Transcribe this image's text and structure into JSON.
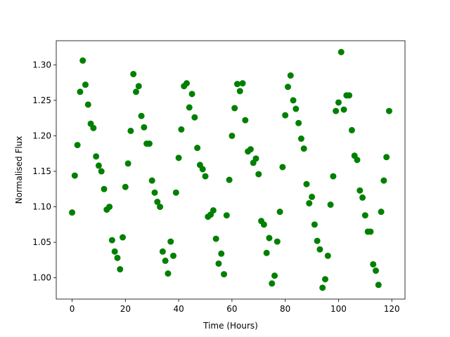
{
  "chart_data": {
    "type": "scatter",
    "xlabel": "Time (Hours)",
    "ylabel": "Normalised Flux",
    "color": "#008000",
    "x": [
      0,
      1,
      2,
      3,
      4,
      5,
      6,
      7,
      8,
      9,
      10,
      11,
      12,
      13,
      14,
      15,
      16,
      17,
      18,
      19,
      20,
      21,
      22,
      23,
      24,
      25,
      26,
      27,
      28,
      29,
      30,
      31,
      32,
      33,
      34,
      35,
      36,
      37,
      38,
      39,
      40,
      41,
      42,
      43,
      44,
      45,
      46,
      47,
      48,
      49,
      50,
      51,
      52,
      53,
      54,
      55,
      56,
      57,
      58,
      59,
      60,
      61,
      62,
      63,
      64,
      65,
      66,
      67,
      68,
      69,
      70,
      71,
      72,
      73,
      74,
      75,
      76,
      77,
      78,
      79,
      80,
      81,
      82,
      83,
      84,
      85,
      86,
      87,
      88,
      89,
      90,
      91,
      92,
      93,
      94,
      95,
      96,
      97,
      98,
      99,
      100,
      101,
      102,
      103,
      104,
      105,
      106,
      107,
      108,
      109,
      110,
      111,
      112,
      113,
      114,
      115,
      116,
      117,
      118,
      119
    ],
    "values": [
      1.092,
      1.144,
      1.187,
      1.262,
      1.306,
      1.272,
      1.244,
      1.217,
      1.211,
      1.171,
      1.158,
      1.15,
      1.125,
      1.096,
      1.1,
      1.053,
      1.037,
      1.028,
      1.012,
      1.057,
      1.128,
      1.161,
      1.207,
      1.287,
      1.262,
      1.27,
      1.228,
      1.212,
      1.189,
      1.189,
      1.137,
      1.12,
      1.107,
      1.1,
      1.037,
      1.024,
      1.006,
      1.051,
      1.031,
      1.12,
      1.169,
      1.209,
      1.27,
      1.274,
      1.24,
      1.259,
      1.226,
      1.183,
      1.159,
      1.153,
      1.143,
      1.086,
      1.089,
      1.095,
      1.055,
      1.02,
      1.034,
      1.005,
      1.088,
      1.138,
      1.2,
      1.239,
      1.273,
      1.263,
      1.274,
      1.222,
      1.178,
      1.181,
      1.162,
      1.168,
      1.146,
      1.08,
      1.075,
      1.035,
      1.056,
      0.992,
      1.003,
      1.051,
      1.093,
      1.156,
      1.229,
      1.269,
      1.285,
      1.25,
      1.238,
      1.218,
      1.196,
      1.182,
      1.132,
      1.105,
      1.114,
      1.075,
      1.052,
      1.04,
      0.986,
      0.998,
      1.031,
      1.103,
      1.143,
      1.235,
      1.247,
      1.318,
      1.237,
      1.257,
      1.257,
      1.208,
      1.172,
      1.166,
      1.123,
      1.113,
      1.088,
      1.065,
      1.065,
      1.019,
      1.01,
      0.99,
      1.093,
      1.137,
      1.17,
      1.235
    ],
    "xlim": [
      -5.95,
      124.95
    ],
    "ylim": [
      0.97,
      1.334
    ],
    "xticks": [
      0,
      20,
      40,
      60,
      80,
      100,
      120
    ],
    "yticks": [
      {
        "value": 1,
        "label": "1.00"
      },
      1.05,
      {
        "value": 1.1,
        "label": "1.10"
      },
      1.15,
      {
        "value": 1.2,
        "label": "1.20"
      },
      1.25,
      {
        "value": 1.3,
        "label": "1.30"
      }
    ],
    "grid": false
  }
}
